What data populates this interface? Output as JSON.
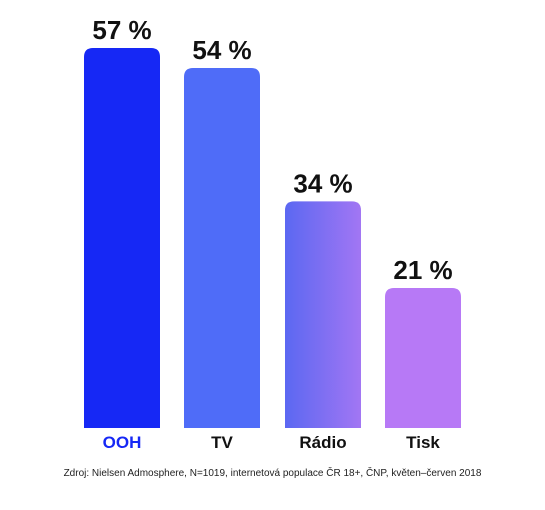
{
  "chart_data": {
    "type": "bar",
    "categories": [
      "OOH",
      "TV",
      "Rádio",
      "Tisk"
    ],
    "values": [
      57,
      54,
      34,
      21
    ],
    "value_labels": [
      "57 %",
      "54 %",
      "34 %",
      "21 %"
    ],
    "ylim": [
      0,
      57
    ],
    "grid": false,
    "legend": "none",
    "colors": {
      "ooh_bar": "#1628f5",
      "tv_bar": "#4f6cf8",
      "radio_bar_start": "#5b68f2",
      "radio_bar_end": "#a276f3",
      "tisk_bar": "#b779f6",
      "highlight_label": "#1628f5",
      "text": "#111111"
    },
    "highlight_category": "OOH"
  },
  "source": "Zdroj: Nielsen Admosphere, N=1019, internetová populace ČR 18+, ČNP, květen–červen 2018"
}
